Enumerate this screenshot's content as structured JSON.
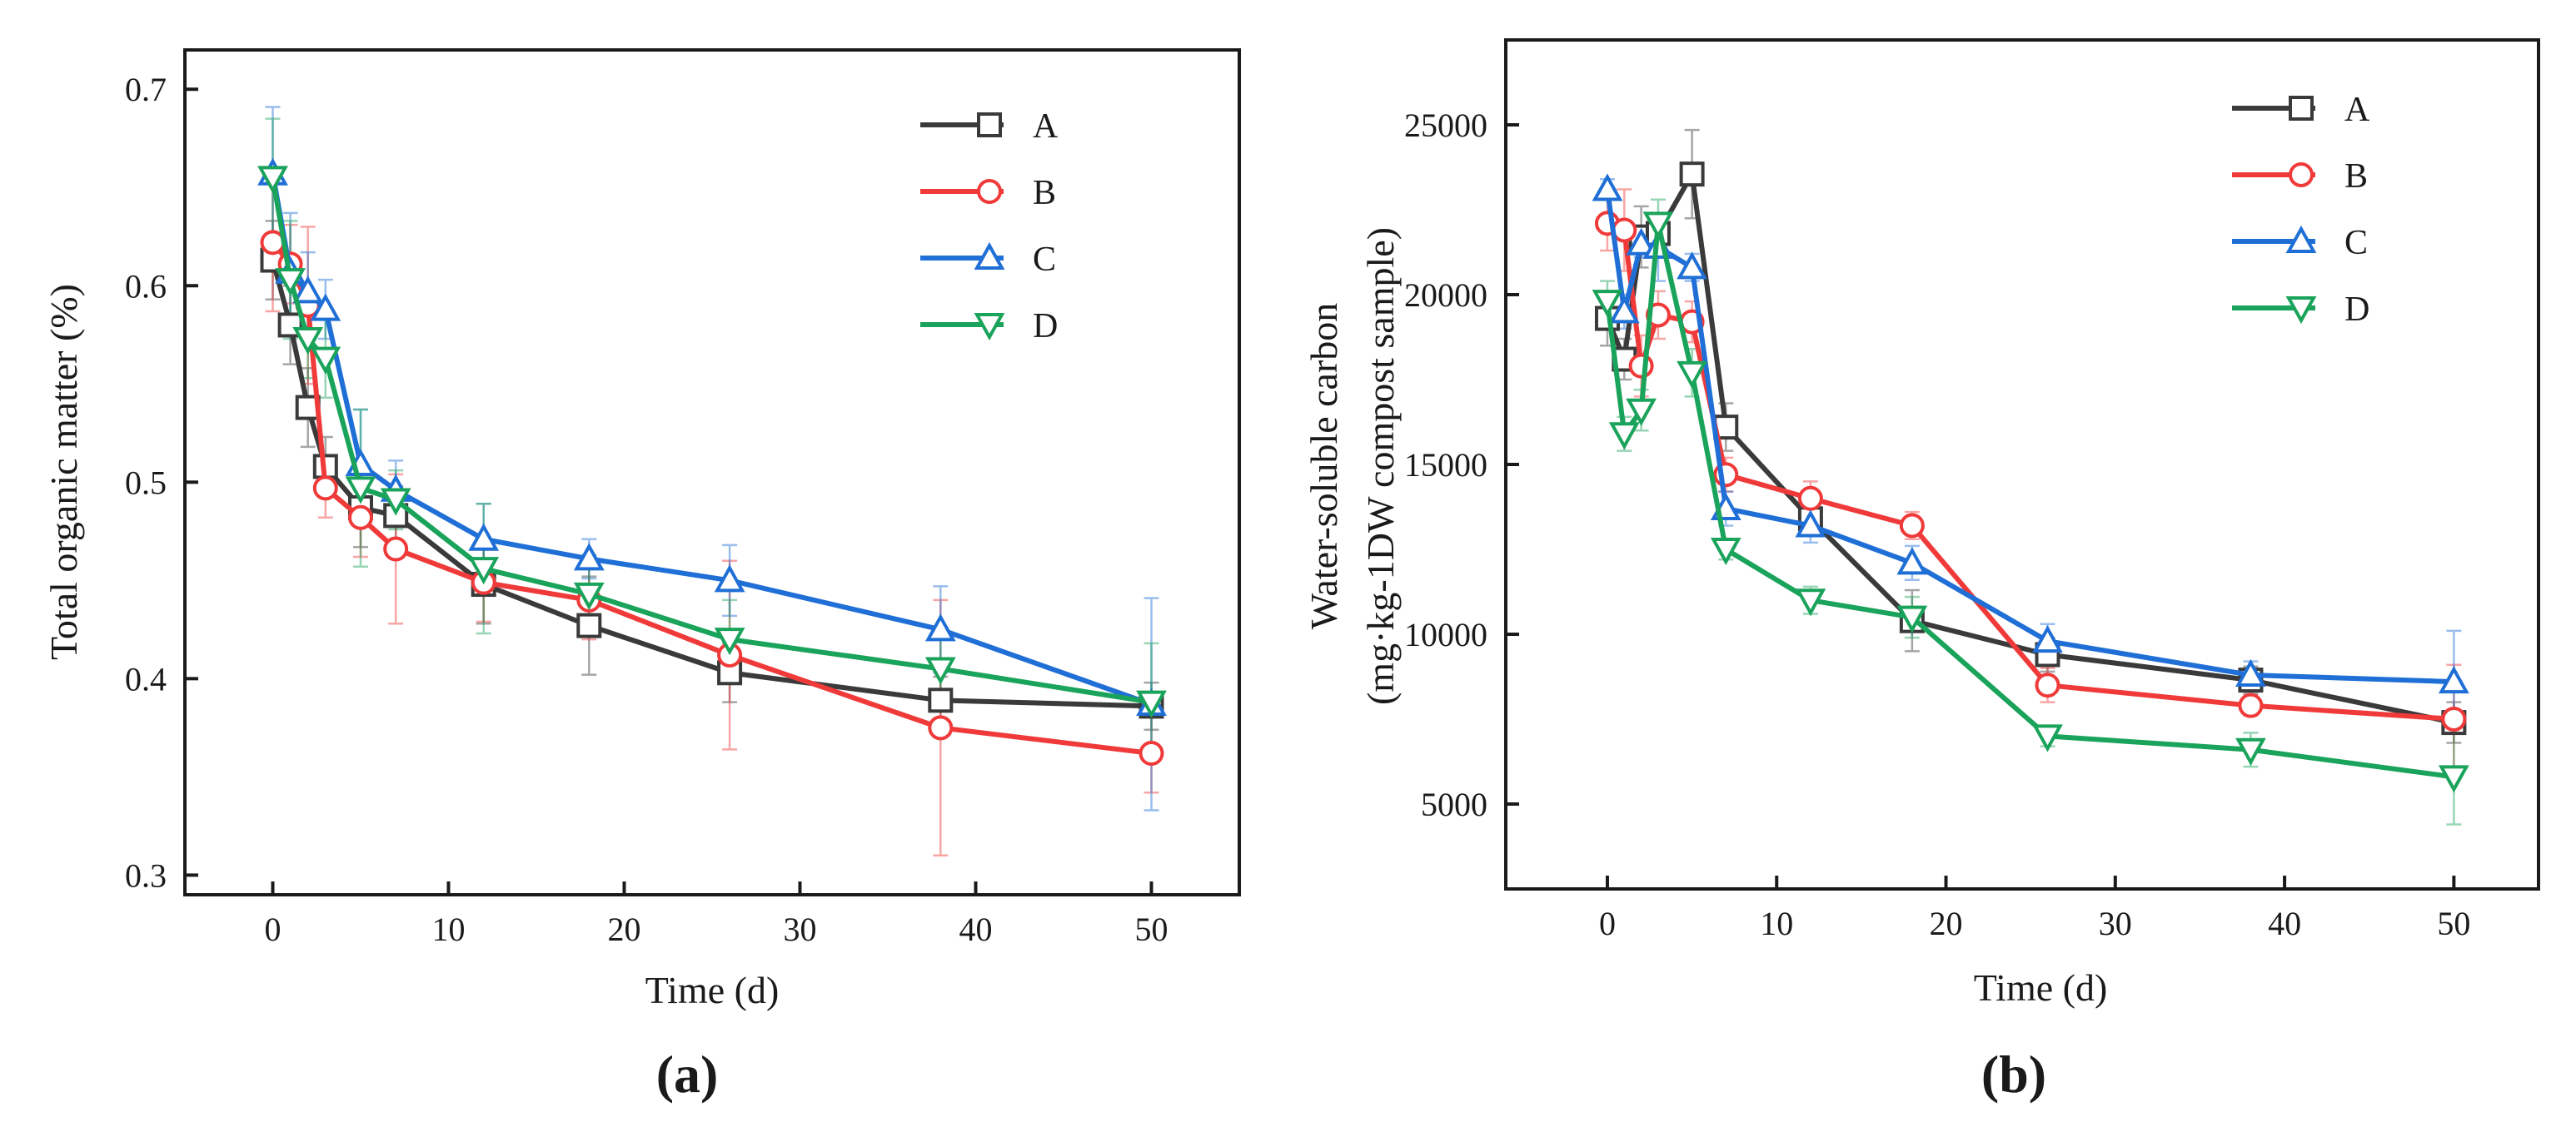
{
  "colors": {
    "A": "#3a3a3a",
    "B": "#f03a3a",
    "C": "#1f6fd6",
    "D": "#1aa35a"
  },
  "chart_data": [
    {
      "type": "line",
      "panel_label": "(a)",
      "title": "",
      "xlabel": "Time (d)",
      "ylabel": "Total organic matter (%)",
      "ylabel_lines": [
        "Total organic matter (%)"
      ],
      "xlim": [
        -5,
        55
      ],
      "ylim": [
        0.29,
        0.72
      ],
      "xticks": [
        0,
        10,
        20,
        30,
        40,
        50
      ],
      "xtick_labels": [
        "0",
        "10",
        "20",
        "30",
        "40",
        "50"
      ],
      "yticks": [
        0.3,
        0.4,
        0.5,
        0.6,
        0.7
      ],
      "ytick_labels": [
        "0.3",
        "0.4",
        "0.5",
        "0.6",
        "0.7"
      ],
      "grid": false,
      "legend_position": "top-right",
      "series": [
        {
          "name": "A",
          "marker": "square",
          "x": [
            0,
            1,
            2,
            3,
            5,
            7,
            12,
            18,
            26,
            38,
            50
          ],
          "y": [
            0.613,
            0.58,
            0.538,
            0.508,
            0.487,
            0.483,
            0.448,
            0.427,
            0.403,
            0.389,
            0.386
          ],
          "err": [
            0.02,
            0.02,
            0.02,
            0.015,
            0.02,
            0.015,
            0.02,
            0.025,
            0.015,
            0.012,
            0.012
          ]
        },
        {
          "name": "B",
          "marker": "circle",
          "x": [
            0,
            1,
            2,
            3,
            5,
            7,
            12,
            18,
            26,
            38,
            50
          ],
          "y": [
            0.622,
            0.611,
            0.59,
            0.497,
            0.482,
            0.466,
            0.449,
            0.44,
            0.412,
            0.375,
            0.362
          ],
          "err": [
            0.035,
            0.02,
            0.04,
            0.015,
            0.02,
            0.038,
            0.02,
            0.02,
            0.048,
            0.065,
            0.02
          ]
        },
        {
          "name": "C",
          "marker": "triangle-up",
          "x": [
            0,
            1,
            2,
            3,
            5,
            7,
            12,
            18,
            26,
            38,
            50
          ],
          "y": [
            0.657,
            0.607,
            0.597,
            0.588,
            0.509,
            0.496,
            0.471,
            0.461,
            0.45,
            0.425,
            0.387
          ],
          "err": [
            0.034,
            0.03,
            0.02,
            0.015,
            0.028,
            0.015,
            0.018,
            0.01,
            0.018,
            0.022,
            0.054
          ]
        },
        {
          "name": "D",
          "marker": "triangle-down",
          "x": [
            0,
            1,
            2,
            3,
            5,
            7,
            12,
            18,
            26,
            38,
            50
          ],
          "y": [
            0.655,
            0.603,
            0.573,
            0.563,
            0.497,
            0.491,
            0.456,
            0.443,
            0.42,
            0.405,
            0.388
          ],
          "err": [
            0.03,
            0.03,
            0.02,
            0.02,
            0.04,
            0.015,
            0.033,
            0.02,
            0.02,
            0.015,
            0.03
          ]
        }
      ]
    },
    {
      "type": "line",
      "panel_label": "(b)",
      "title": "",
      "xlabel": "Time (d)",
      "ylabel": "Water-soluble carbon (mg·kg-1DW compost sample)",
      "ylabel_lines": [
        "Water-soluble carbon",
        "(mg·kg-1DW compost sample)"
      ],
      "xlim": [
        -6,
        55
      ],
      "ylim": [
        2500,
        27500
      ],
      "xticks": [
        0,
        10,
        20,
        30,
        40,
        50
      ],
      "xtick_labels": [
        "0",
        "10",
        "20",
        "30",
        "40",
        "50"
      ],
      "yticks": [
        5000,
        10000,
        15000,
        20000,
        25000
      ],
      "ytick_labels": [
        "5000",
        "10000",
        "15000",
        "20000",
        "25000"
      ],
      "grid": false,
      "legend_position": "top-right",
      "series": [
        {
          "name": "A",
          "marker": "square",
          "x": [
            0,
            1,
            2,
            3,
            5,
            7,
            12,
            18,
            26,
            38,
            50
          ],
          "y": [
            19300,
            18100,
            21700,
            21800,
            23550,
            16100,
            13400,
            10400,
            9400,
            8650,
            7400
          ],
          "err": [
            800,
            600,
            900,
            600,
            1300,
            700,
            500,
            900,
            500,
            400,
            600
          ]
        },
        {
          "name": "B",
          "marker": "circle",
          "x": [
            0,
            1,
            2,
            3,
            5,
            7,
            12,
            18,
            26,
            38,
            50
          ],
          "y": [
            22100,
            21900,
            17900,
            19400,
            19200,
            14700,
            14000,
            13200,
            8500,
            7900,
            7500
          ],
          "err": [
            800,
            1200,
            900,
            700,
            600,
            500,
            500,
            400,
            500,
            300,
            1600
          ]
        },
        {
          "name": "C",
          "marker": "triangle-up",
          "x": [
            0,
            1,
            2,
            3,
            5,
            7,
            12,
            18,
            26,
            38,
            50
          ],
          "y": [
            23100,
            19500,
            21500,
            21400,
            20800,
            13700,
            13200,
            12100,
            9800,
            8800,
            8600
          ],
          "err": [
            300,
            500,
            400,
            1000,
            400,
            500,
            500,
            500,
            500,
            400,
            1500
          ]
        },
        {
          "name": "D",
          "marker": "triangle-down",
          "x": [
            0,
            1,
            2,
            3,
            5,
            7,
            12,
            18,
            26,
            38,
            50
          ],
          "y": [
            19800,
            15900,
            16600,
            22100,
            17700,
            12500,
            11000,
            10500,
            7000,
            6600,
            5800
          ],
          "err": [
            600,
            500,
            600,
            700,
            700,
            300,
            400,
            600,
            300,
            500,
            1400
          ]
        }
      ]
    }
  ]
}
